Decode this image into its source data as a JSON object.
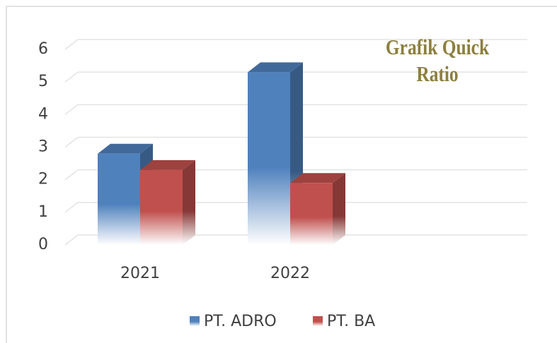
{
  "chart_data": {
    "type": "bar",
    "title": "Grafik Quick Ratio",
    "categories": [
      "2021",
      "2022"
    ],
    "series": [
      {
        "name": "PT. ADRO",
        "color": "#4f81bd",
        "values": [
          2.8,
          5.3
        ]
      },
      {
        "name": "PT. BA",
        "color": "#c0504d",
        "values": [
          2.3,
          1.9
        ]
      }
    ],
    "ylim": [
      0,
      6
    ],
    "yticks": [
      0,
      1,
      2,
      3,
      4,
      5,
      6
    ],
    "grid": true,
    "legend": "bottom"
  }
}
